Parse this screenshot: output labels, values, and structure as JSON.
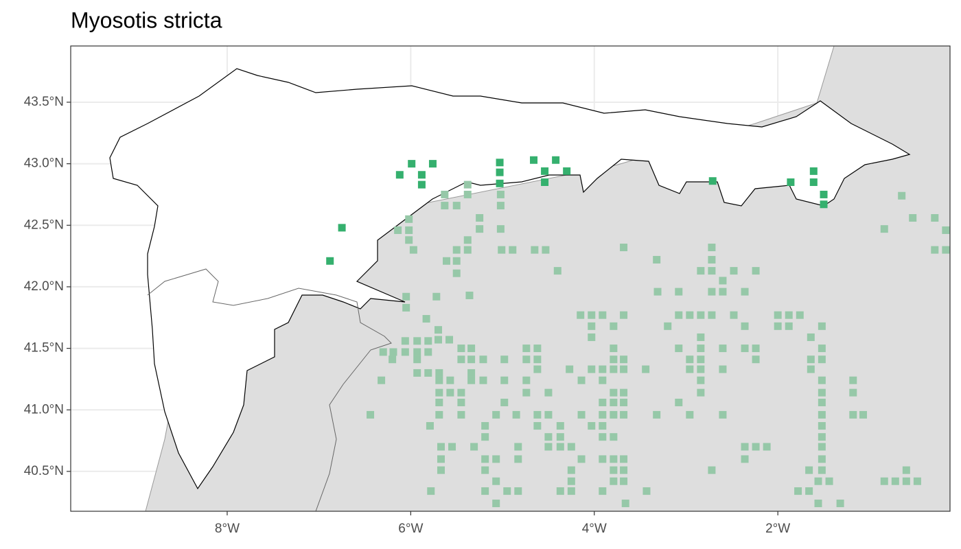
{
  "chart_data": {
    "type": "scatter",
    "title": "Myosotis stricta",
    "xlim": [
      -9.705,
      -0.124
    ],
    "ylim": [
      40.176,
      43.957
    ],
    "xticks": [
      {
        "value": -8,
        "label": "8°W"
      },
      {
        "value": -6,
        "label": "6°W"
      },
      {
        "value": -4,
        "label": "4°W"
      },
      {
        "value": -2,
        "label": "2°W"
      }
    ],
    "yticks": [
      {
        "value": 40.5,
        "label": "40.5°N"
      },
      {
        "value": 41,
        "label": "41.0°N"
      },
      {
        "value": 41.5,
        "label": "41.5°N"
      },
      {
        "value": 42,
        "label": "42.0°N"
      },
      {
        "value": 42.5,
        "label": "42.5°N"
      },
      {
        "value": 43,
        "label": "43.0°N"
      },
      {
        "value": 43.5,
        "label": "43.5°N"
      }
    ],
    "grid": true,
    "series": [
      {
        "color": "#96c8a8",
        "x": [
          -5.63,
          -5.38,
          -5.63,
          -5.5,
          -5.38,
          -5.25,
          -5.25,
          -5.02,
          -5.02,
          -5.02,
          -6.14,
          -6.02,
          -6.02,
          -6.02,
          -5.97,
          -5.5,
          -5.38,
          -5.38,
          -5.61,
          -5.5,
          -5.5,
          -5.01,
          -4.89,
          -4.65,
          -4.53,
          -4.4,
          -3.68,
          -3.32,
          -2.72,
          -2.72,
          -2.84,
          -2.72,
          -2.48,
          -2.24,
          -2.6,
          -2.72,
          -2.6,
          -2.36,
          -3.31,
          -3.08,
          -6.05,
          -6.05,
          -5.72,
          -5.36,
          -4.15,
          -4.03,
          -3.91,
          -3.68,
          -4.03,
          -3.79,
          -4.03,
          -3.2,
          -3.08,
          -2.96,
          -2.84,
          -2.72,
          -2.48,
          -2.36,
          -2.0,
          -1.88,
          -1.76,
          -2.0,
          -1.88,
          -1.52,
          -5.83,
          -5.7,
          -6.3,
          -6.19,
          -6.06,
          -6.06,
          -5.93,
          -5.93,
          -5.81,
          -5.81,
          -5.7,
          -5.58,
          -6.2,
          -5.93,
          -5.93,
          -5.81,
          -5.69,
          -5.45,
          -5.34,
          -5.45,
          -5.34,
          -5.21,
          -4.98,
          -4.74,
          -4.62,
          -4.74,
          -4.62,
          -6.32,
          -5.34,
          -5.34,
          -5.21,
          -5.69,
          -5.57,
          -5.69,
          -5.57,
          -5.45,
          -5.69,
          -5.45,
          -5.69,
          -5.45,
          -4.98,
          -4.74,
          -4.62,
          -4.74,
          -4.5,
          -4.27,
          -4.14,
          -4.03,
          -3.91,
          -3.79,
          -3.68,
          -3.91,
          -3.79,
          -3.79,
          -3.68,
          -3.44,
          -3.08,
          -2.96,
          -2.96,
          -2.84,
          -2.84,
          -2.84,
          -2.84,
          -2.84,
          -2.84,
          -2.6,
          -2.6,
          -2.36,
          -2.24,
          -2.24,
          -1.64,
          -1.64,
          -1.64,
          -1.52,
          -1.52,
          -1.18,
          -1.18,
          -6.44,
          -5.79,
          -5.19,
          -5.19,
          -5.07,
          -4.98,
          -4.85,
          -4.62,
          -4.5,
          -4.62,
          -4.37,
          -4.5,
          -4.37,
          -4.5,
          -4.37,
          -4.25,
          -4.14,
          -4.03,
          -3.91,
          -3.91,
          -3.91,
          -3.79,
          -3.68,
          -3.79,
          -3.79,
          -3.68,
          -3.91,
          -3.79,
          -3.68,
          -3.08,
          -2.96,
          -2.6,
          -3.32,
          -1.52,
          -1.52,
          -1.52,
          -1.52,
          -1.52,
          -1.52,
          -1.52,
          -1.52,
          -1.18,
          -1.07,
          -5.67,
          -5.55,
          -5.67,
          -5.67,
          -5.31,
          -5.19,
          -5.07,
          -5.19,
          -4.83,
          -4.83,
          -4.14,
          -3.91,
          -3.79,
          -3.68,
          -3.79,
          -3.68,
          -3.79,
          -3.68,
          -4.25,
          -4.25,
          -4.37,
          -4.25,
          -5.07,
          -5.19,
          -4.95,
          -4.83,
          -5.07,
          -5.78,
          -3.91,
          -3.66,
          -3.43,
          -2.72,
          -2.36,
          -2.24,
          -2.12,
          -2.36,
          -1.66,
          -1.78,
          -1.66,
          -1.56,
          -1.44,
          -1.56,
          -1.32,
          -0.84,
          -0.72,
          -0.6,
          -0.48,
          -0.6,
          -0.84,
          -0.65,
          -0.53,
          -0.29,
          -0.17,
          -0.29,
          -0.17,
          -1.52
        ],
        "values": [
          42.75,
          42.83,
          42.66,
          42.66,
          42.75,
          42.56,
          42.47,
          42.75,
          42.66,
          42.47,
          42.46,
          42.55,
          42.46,
          42.38,
          42.3,
          42.3,
          42.38,
          42.3,
          42.21,
          42.21,
          42.11,
          42.3,
          42.3,
          42.3,
          42.3,
          42.13,
          42.32,
          42.22,
          42.32,
          42.22,
          42.13,
          42.13,
          42.13,
          42.13,
          42.05,
          41.96,
          41.96,
          41.96,
          41.96,
          41.96,
          41.92,
          41.83,
          41.92,
          41.93,
          41.77,
          41.77,
          41.77,
          41.77,
          41.68,
          41.68,
          41.59,
          41.68,
          41.77,
          41.77,
          41.77,
          41.77,
          41.77,
          41.68,
          41.77,
          41.77,
          41.77,
          41.68,
          41.68,
          41.68,
          41.74,
          41.65,
          41.47,
          41.47,
          41.56,
          41.47,
          41.56,
          41.47,
          41.56,
          41.47,
          41.57,
          41.57,
          41.41,
          41.41,
          41.3,
          41.3,
          41.3,
          41.5,
          41.5,
          41.41,
          41.41,
          41.41,
          41.41,
          41.5,
          41.5,
          41.41,
          41.41,
          41.24,
          41.3,
          41.24,
          41.24,
          41.24,
          41.24,
          41.14,
          41.14,
          41.14,
          41.06,
          41.06,
          40.96,
          40.96,
          41.24,
          41.24,
          41.33,
          41.14,
          41.14,
          41.33,
          41.24,
          41.33,
          41.33,
          41.33,
          41.33,
          41.24,
          41.5,
          41.41,
          41.41,
          41.33,
          41.5,
          41.41,
          41.33,
          41.59,
          41.5,
          41.41,
          41.33,
          41.24,
          41.14,
          41.5,
          41.33,
          41.5,
          41.5,
          41.41,
          41.59,
          41.41,
          41.33,
          41.5,
          41.41,
          41.24,
          41.14,
          40.96,
          40.87,
          40.87,
          40.78,
          40.96,
          41.06,
          40.96,
          40.96,
          40.96,
          40.87,
          40.87,
          40.78,
          40.78,
          40.7,
          40.7,
          40.7,
          40.96,
          40.87,
          41.06,
          40.96,
          40.87,
          41.14,
          41.14,
          41.06,
          40.96,
          40.96,
          40.78,
          40.78,
          41.06,
          41.06,
          40.96,
          40.96,
          40.96,
          41.24,
          41.14,
          41.06,
          40.96,
          40.87,
          40.78,
          40.7,
          40.6,
          40.96,
          40.96,
          40.7,
          40.7,
          40.6,
          40.51,
          40.7,
          40.6,
          40.6,
          40.51,
          40.7,
          40.6,
          40.6,
          40.6,
          40.6,
          40.6,
          40.51,
          40.51,
          40.42,
          40.42,
          40.51,
          40.42,
          40.34,
          40.34,
          40.42,
          40.34,
          40.34,
          40.34,
          40.24,
          40.34,
          40.34,
          40.24,
          40.34,
          40.51,
          40.7,
          40.7,
          40.7,
          40.6,
          40.51,
          40.34,
          40.34,
          40.42,
          40.42,
          40.24,
          40.24,
          40.42,
          40.42,
          40.42,
          40.42,
          40.51,
          42.47,
          42.74,
          42.56,
          42.56,
          42.46,
          42.3,
          42.3,
          40.51
        ]
      },
      {
        "color": "#35b06e",
        "x": [
          -6.88,
          -6.75,
          -6.12,
          -5.99,
          -5.88,
          -5.76,
          -5.88,
          -5.03,
          -5.03,
          -5.03,
          -4.66,
          -4.54,
          -4.54,
          -4.42,
          -4.3,
          -2.71,
          -1.86,
          -1.61,
          -1.61,
          -1.5,
          -1.5
        ],
        "values": [
          42.21,
          42.48,
          42.91,
          43.0,
          42.91,
          43.0,
          42.83,
          43.01,
          42.93,
          42.84,
          43.03,
          42.94,
          42.85,
          43.03,
          42.94,
          42.86,
          42.85,
          42.94,
          42.85,
          42.75,
          42.67
        ]
      }
    ]
  }
}
